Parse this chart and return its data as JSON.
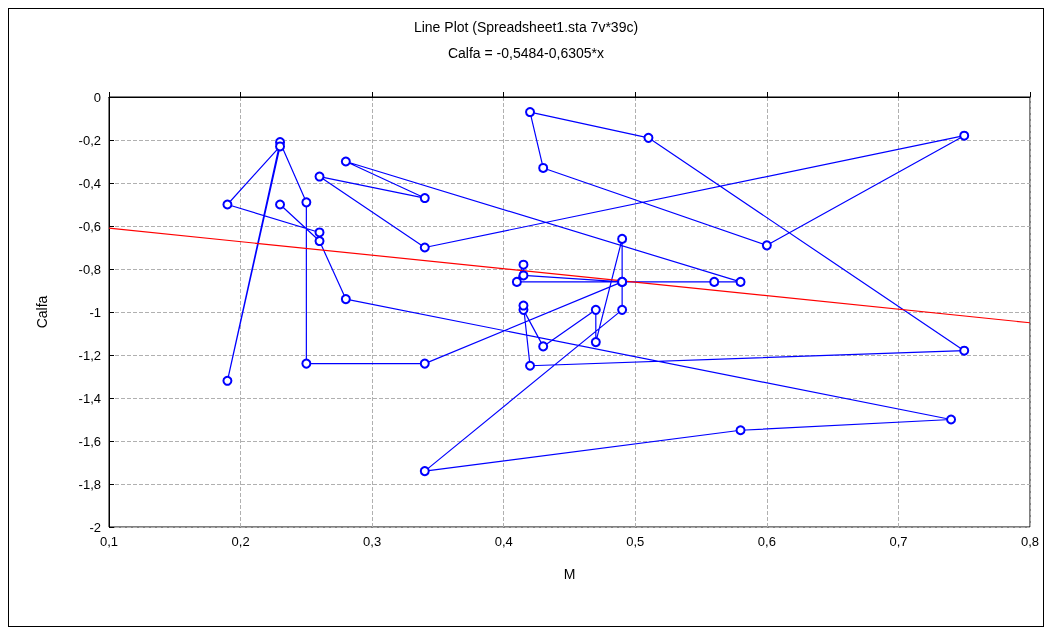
{
  "chart_data": {
    "type": "line",
    "title": "Line Plot (Spreadsheet1.sta 7v*39c)",
    "subtitle": "Calfa = -0,5484-0,6305*x",
    "xlabel": "M",
    "ylabel": "Calfa",
    "x": [
      0.23,
      0.26,
      0.28,
      0.74,
      0.58,
      0.34,
      0.49,
      0.49,
      0.49,
      0.47,
      0.47,
      0.43,
      0.415,
      0.415,
      0.42,
      0.75,
      0.51,
      0.42,
      0.43,
      0.6,
      0.75,
      0.34,
      0.26,
      0.34,
      0.28,
      0.58,
      0.56,
      0.41,
      0.415,
      0.415,
      0.49,
      0.34,
      0.25,
      0.25,
      0.23,
      0.19,
      0.23,
      0.19,
      0.26
    ],
    "series": [
      {
        "color": "#0000ff",
        "marker": "circle",
        "values": [
          -0.5,
          -0.67,
          -0.94,
          -1.5,
          -1.55,
          -1.74,
          -0.99,
          -0.86,
          -0.66,
          -1.14,
          -0.99,
          -1.16,
          -0.99,
          -0.97,
          -1.25,
          -1.18,
          -0.19,
          -0.07,
          -0.33,
          -0.69,
          -0.18,
          -0.7,
          -0.37,
          -0.47,
          -0.3,
          -0.86,
          -0.86,
          -0.86,
          -0.78,
          -0.83,
          -0.86,
          -1.24,
          -1.24,
          -0.49,
          -0.21,
          -1.32,
          -0.23,
          -0.5,
          -0.63
        ]
      },
      {
        "type": "line",
        "color": "#ff0000",
        "marker": "none",
        "x": [
          0.1,
          0.8
        ],
        "values": [
          -0.61,
          -1.05
        ]
      }
    ],
    "xlim": [
      0.1,
      0.8
    ],
    "xticks": [
      {
        "value": 0.1,
        "label": "0,1"
      },
      {
        "value": 0.2,
        "label": "0,2"
      },
      {
        "value": 0.3,
        "label": "0,3"
      },
      {
        "value": 0.4,
        "label": "0,4"
      },
      {
        "value": 0.5,
        "label": "0,5"
      },
      {
        "value": 0.6,
        "label": "0,6"
      },
      {
        "value": 0.7,
        "label": "0,7"
      },
      {
        "value": 0.8,
        "label": "0,8"
      }
    ],
    "ylim": [
      -2,
      0
    ],
    "yticks": [
      {
        "value": -2,
        "label": "-2"
      },
      {
        "value": -1.8,
        "label": "-1,8"
      },
      {
        "value": -1.6,
        "label": "-1,6"
      },
      {
        "value": -1.4,
        "label": "-1,4"
      },
      {
        "value": -1.2,
        "label": "-1,2"
      },
      {
        "value": -1,
        "label": "-1"
      },
      {
        "value": -0.8,
        "label": "-0,8"
      },
      {
        "value": -0.6,
        "label": "-0,6"
      },
      {
        "value": -0.4,
        "label": "-0,4"
      },
      {
        "value": -0.2,
        "label": "-0,2"
      },
      {
        "value": 0,
        "label": "0"
      }
    ],
    "grid": true,
    "line_style": "solid"
  }
}
